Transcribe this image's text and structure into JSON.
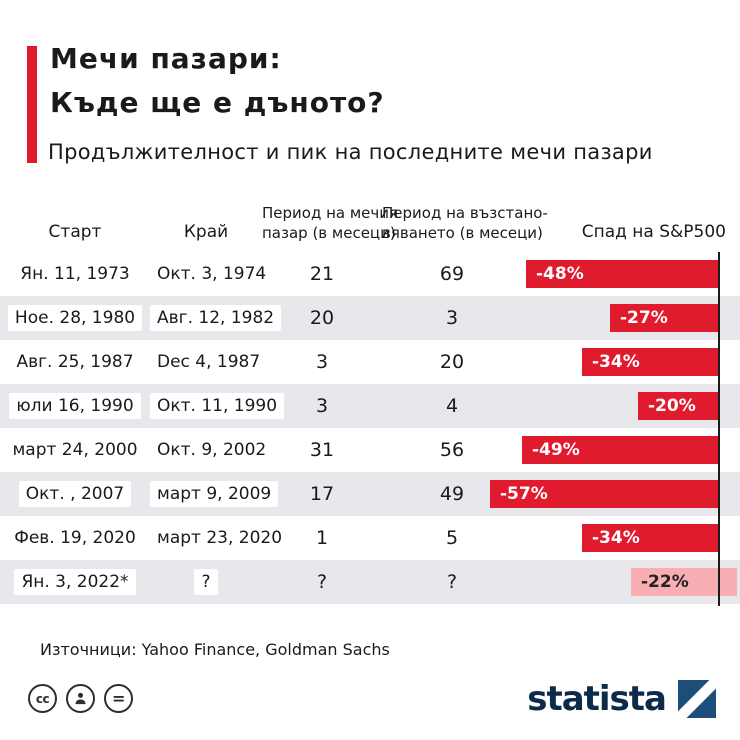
{
  "header": {
    "title_line1": "Мечи пазари:",
    "title_line2": "Къде ще е дъното?",
    "subtitle": "Продължителност и пик на последните мечи пазари"
  },
  "table": {
    "columns": {
      "start": "Старт",
      "end": "Край",
      "bear_line1": "Период на мечия",
      "bear_line2": "пазар (в месеци)",
      "recovery_line1": "Период на възстано-",
      "recovery_line2": "вяването (в месеци)",
      "drop": "Спад на S&P500"
    },
    "rows": [
      {
        "start": "Ян. 11, 1973",
        "end": "Окт. 3, 1974",
        "bear": "21",
        "recovery": "69",
        "drop": "-48%",
        "drop_value": 48,
        "ongoing": false
      },
      {
        "start": "Ное. 28, 1980",
        "end": "Авг. 12, 1982",
        "bear": "20",
        "recovery": "3",
        "drop": "-27%",
        "drop_value": 27,
        "ongoing": false
      },
      {
        "start": "Авг. 25, 1987",
        "end": "Dec 4, 1987",
        "bear": "3",
        "recovery": "20",
        "drop": "-34%",
        "drop_value": 34,
        "ongoing": false
      },
      {
        "start": "юли 16, 1990",
        "end": "Окт. 11, 1990",
        "bear": "3",
        "recovery": "4",
        "drop": "-20%",
        "drop_value": 20,
        "ongoing": false
      },
      {
        "start": "март 24, 2000",
        "end": "Окт. 9, 2002",
        "bear": "31",
        "recovery": "56",
        "drop": "-49%",
        "drop_value": 49,
        "ongoing": false
      },
      {
        "start": "Окт. , 2007",
        "end": "март 9, 2009",
        "bear": "17",
        "recovery": "49",
        "drop": "-57%",
        "drop_value": 57,
        "ongoing": false
      },
      {
        "start": "Фев. 19, 2020",
        "end": "март 23, 2020",
        "bear": "1",
        "recovery": "5",
        "drop": "-34%",
        "drop_value": 34,
        "ongoing": false
      },
      {
        "start": "Ян. 3, 2022*",
        "end": "?",
        "bear": "?",
        "recovery": "?",
        "drop": "-22%",
        "drop_value": 22,
        "ongoing": true
      }
    ]
  },
  "footer": {
    "sources": "Източници: Yahoo Finance, Goldman Sachs",
    "brand": "statista",
    "icons": {
      "cc": "cc",
      "equals": "="
    }
  },
  "colors": {
    "red": "#e11b2e",
    "pink": "#f9aeb4",
    "navy": "#0c2b4a",
    "row_alt": "#e7e7ec"
  },
  "chart_data": {
    "type": "bar",
    "orientation": "horizontal",
    "title": "Мечи пазари: Къде ще е дъното?",
    "subtitle": "Продължителност и пик на последните мечи пазари",
    "categories": [
      "Ян. 11, 1973",
      "Ное. 28, 1980",
      "Авг. 25, 1987",
      "юли 16, 1990",
      "март 24, 2000",
      "Окт. , 2007",
      "Фев. 19, 2020",
      "Ян. 3, 2022*"
    ],
    "end_dates": [
      "Окт. 3, 1974",
      "Авг. 12, 1982",
      "Dec 4, 1987",
      "Окт. 11, 1990",
      "Окт. 9, 2002",
      "март 9, 2009",
      "март 23, 2020",
      "?"
    ],
    "series": [
      {
        "name": "Период на мечия пазар (в месеци)",
        "values": [
          21,
          20,
          3,
          3,
          31,
          17,
          1,
          null
        ]
      },
      {
        "name": "Период на възстановяването (в месеци)",
        "values": [
          69,
          3,
          20,
          4,
          56,
          49,
          5,
          null
        ]
      },
      {
        "name": "Спад на S&P500 (%)",
        "values": [
          -48,
          -27,
          -34,
          -20,
          -49,
          -57,
          -34,
          -22
        ]
      }
    ],
    "legend_position": "none",
    "grid": false,
    "sources": "Yahoo Finance, Goldman Sachs"
  }
}
